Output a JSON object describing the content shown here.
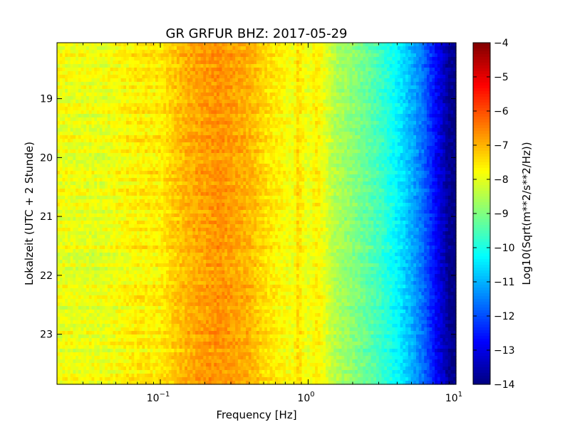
{
  "chart_data": {
    "type": "heatmap",
    "title": "GR GRFUR BHZ: 2017-05-29",
    "xlabel": "Frequency [Hz]",
    "ylabel": "Lokalzeit (UTC + 2 Stunde)",
    "x_scale": "log",
    "xlim": [
      0.02,
      10
    ],
    "x_ticks": [
      {
        "value": 0.1,
        "base": "10",
        "exp": "−1"
      },
      {
        "value": 1,
        "base": "10",
        "exp": "0"
      },
      {
        "value": 10,
        "base": "10",
        "exp": "1"
      }
    ],
    "ylim": [
      18.05,
      23.85
    ],
    "y_inverted": true,
    "y_ticks": [
      "19",
      "20",
      "21",
      "22",
      "23"
    ],
    "colorbar": {
      "label": "Log10(Sqrt(m**2/s**2/Hz))",
      "range": [
        -14,
        -4
      ],
      "ticks": [
        "−4",
        "−5",
        "−6",
        "−7",
        "−8",
        "−9",
        "−10",
        "−11",
        "−12",
        "−13",
        "−14"
      ],
      "colormap": "jet"
    },
    "spectrum_profile": {
      "frequency_hz": [
        0.02,
        0.04,
        0.06,
        0.08,
        0.1,
        0.12,
        0.15,
        0.2,
        0.25,
        0.3,
        0.4,
        0.5,
        0.6,
        0.8,
        0.85,
        1.0,
        1.15,
        1.5,
        2.0,
        3.0,
        4.0,
        5.0,
        6.0,
        7.0,
        8.0,
        9.0,
        10.0
      ],
      "level": [
        -7.9,
        -8.0,
        -7.7,
        -7.6,
        -7.6,
        -7.3,
        -7.0,
        -6.8,
        -6.7,
        -6.8,
        -7.0,
        -7.4,
        -7.6,
        -7.9,
        -7.4,
        -8.0,
        -7.6,
        -8.5,
        -8.9,
        -9.6,
        -10.3,
        -11.0,
        -11.7,
        -12.5,
        -13.2,
        -13.8,
        -14.0
      ]
    }
  }
}
